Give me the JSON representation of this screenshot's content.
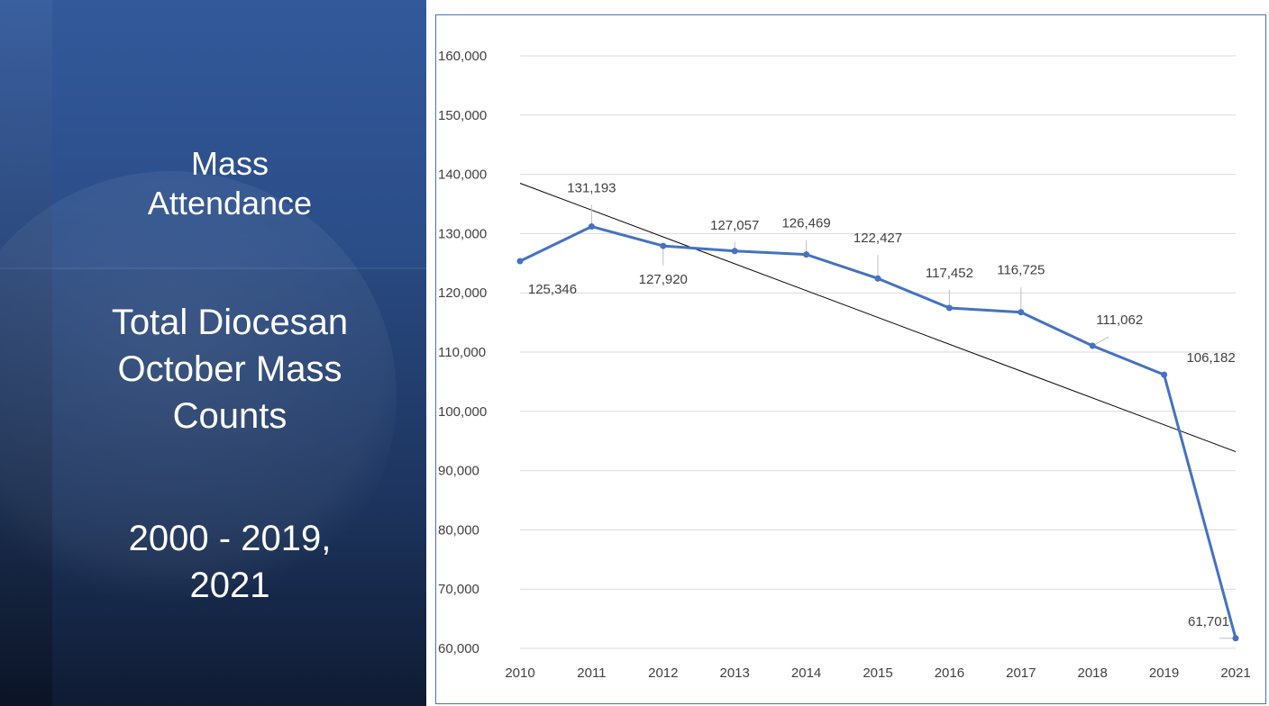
{
  "slide": {
    "title_lines": [
      "Mass",
      "Attendance"
    ],
    "subtitle_lines": [
      "Total Diocesan",
      "October Mass",
      "Counts"
    ],
    "years_lines": [
      "2000 - 2019,",
      "2021"
    ]
  },
  "colors": {
    "panel": "#2f5597",
    "series": "#4472c4",
    "trendline": "#000000",
    "gridline": "#d9d9d9"
  },
  "chart_data": {
    "type": "line",
    "title": "",
    "xlabel": "",
    "ylabel": "",
    "categories": [
      "2010",
      "2011",
      "2012",
      "2013",
      "2014",
      "2015",
      "2016",
      "2017",
      "2018",
      "2019",
      "2021"
    ],
    "series": [
      {
        "values": [
          125346,
          131193,
          127920,
          127057,
          126469,
          122427,
          117452,
          116725,
          111062,
          106182,
          61701
        ],
        "data_labels": [
          "125,346",
          "131,193",
          "127,920",
          "127,057",
          "126,469",
          "122,427",
          "117,452",
          "116,725",
          "111,062",
          "106,182",
          "61,701"
        ]
      }
    ],
    "trendline": {
      "type": "linear",
      "start": 138500,
      "end": 93200
    },
    "ylim": [
      60000,
      160000
    ],
    "yticks": [
      60000,
      70000,
      80000,
      90000,
      100000,
      110000,
      120000,
      130000,
      140000,
      150000,
      160000
    ],
    "ytick_labels": [
      "60,000",
      "70,000",
      "80,000",
      "90,000",
      "100,000",
      "110,000",
      "120,000",
      "130,000",
      "140,000",
      "150,000",
      "160,000"
    ],
    "grid": true,
    "legend": "none"
  }
}
